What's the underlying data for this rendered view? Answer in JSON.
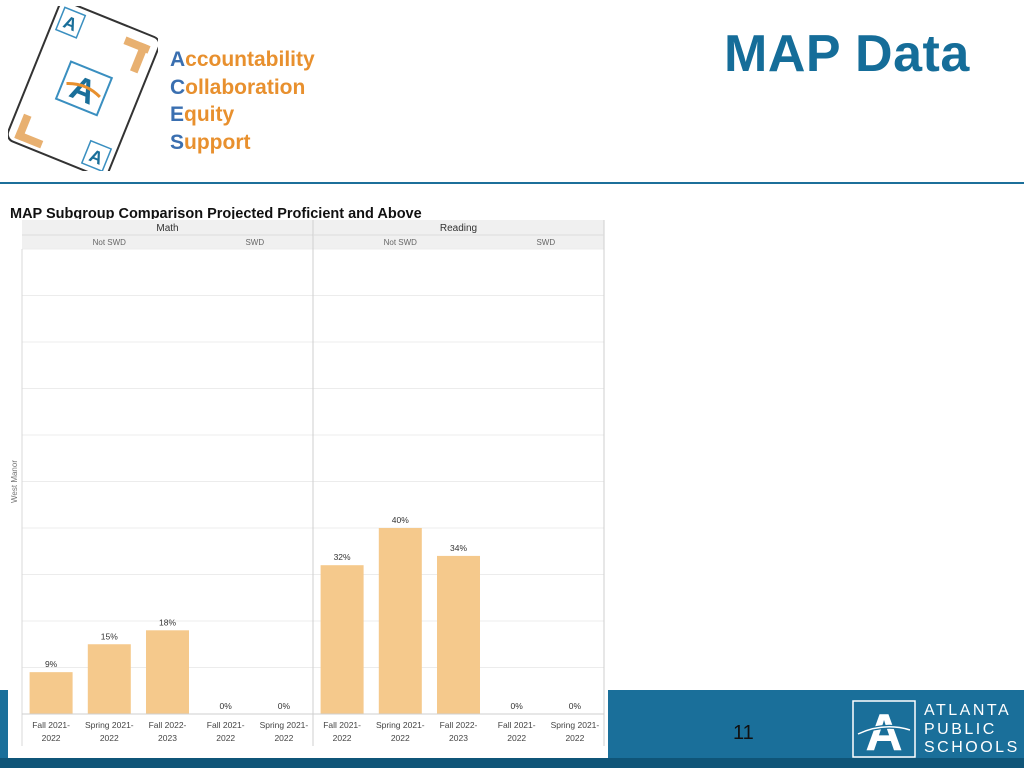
{
  "header": {
    "acronym": [
      {
        "first": "A",
        "rest": "ccountability"
      },
      {
        "first": "C",
        "rest": "ollaboration"
      },
      {
        "first": "E",
        "rest": "quity"
      },
      {
        "first": "S",
        "rest": "upport"
      }
    ],
    "title": "MAP Data"
  },
  "chart_title": "MAP Subgroup Comparison Projected Proficient and Above",
  "footer": {
    "page_number": "11",
    "org_lines": [
      "ATLANTA",
      "PUBLIC",
      "SCHOOLS"
    ]
  },
  "colors": {
    "brand_blue": "#1a6f9a",
    "title_blue": "#156d99",
    "accent_orange": "#e8902e",
    "bar_fill": "#f5c98c"
  },
  "chart_data": {
    "type": "bar",
    "title": "MAP Subgroup Comparison Projected Proficient and Above",
    "row_label": "West Manor",
    "ylim": [
      0,
      100
    ],
    "grid": true,
    "subjects": [
      {
        "name": "Math",
        "groups": [
          {
            "name": "Not SWD",
            "categories": [
              "Fall 2021-2022",
              "Spring 2021-2022",
              "Fall 2022-2023"
            ],
            "values": [
              9,
              15,
              18
            ],
            "labels": [
              "9%",
              "15%",
              "18%"
            ]
          },
          {
            "name": "SWD",
            "categories": [
              "Fall 2021-2022",
              "Spring 2021-2022"
            ],
            "values": [
              0,
              0
            ],
            "labels": [
              "0%",
              "0%"
            ]
          }
        ]
      },
      {
        "name": "Reading",
        "groups": [
          {
            "name": "Not SWD",
            "categories": [
              "Fall 2021-2022",
              "Spring 2021-2022",
              "Fall 2022-2023"
            ],
            "values": [
              32,
              40,
              34
            ],
            "labels": [
              "32%",
              "40%",
              "34%"
            ]
          },
          {
            "name": "SWD",
            "categories": [
              "Fall 2021-2022",
              "Spring 2021-2022"
            ],
            "values": [
              0,
              0
            ],
            "labels": [
              "0%",
              "0%"
            ]
          }
        ]
      }
    ]
  }
}
